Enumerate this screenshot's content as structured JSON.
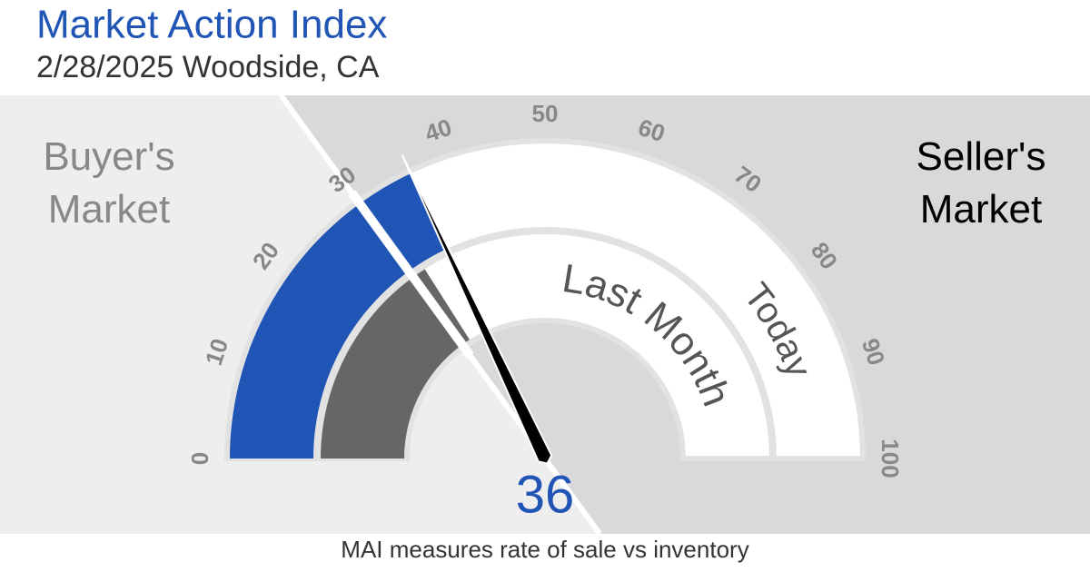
{
  "chart_data": {
    "type": "gauge",
    "title": "Market Action Index",
    "subtitle": "2/28/2025 Woodside, CA",
    "footer": "MAI measures rate of sale vs inventory",
    "xlim": [
      0,
      100
    ],
    "xticks": [
      0,
      10,
      20,
      30,
      40,
      50,
      60,
      70,
      80,
      90,
      100
    ],
    "threshold": 30,
    "zones": [
      {
        "name": "Buyer's Market",
        "color": "#eeeeee",
        "text_color": "#888888"
      },
      {
        "name": "Seller's Market",
        "color": "#d9d9d9",
        "text_color": "#000000"
      }
    ],
    "series": [
      {
        "name": "Today",
        "color": "#2155b5",
        "values": [
          36
        ]
      },
      {
        "name": "Last Month",
        "color": "#666666",
        "values": [
          32
        ]
      }
    ]
  }
}
